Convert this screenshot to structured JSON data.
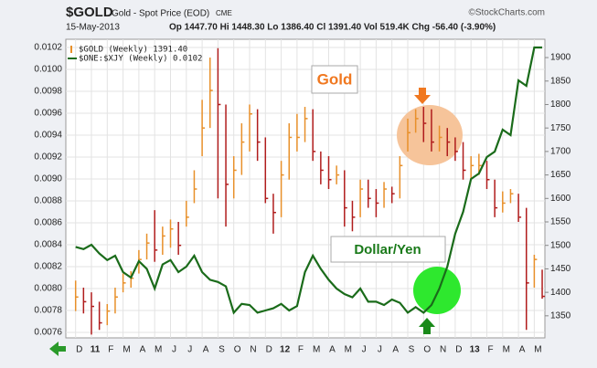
{
  "chart_data": {
    "type": "combo",
    "symbol": "$GOLD",
    "title": "Gold - Spot Price (EOD)",
    "exchange": "CME",
    "source": "©StockCharts.com",
    "date": "15-May-2013",
    "quote": "Op 1447.70  Hi 1448.30  Lo 1386.40  Cl 1391.40  Vol 519.4K  Chg -56.40 (-3.90%)",
    "annotations": [
      "Gold",
      "Dollar/Yen"
    ],
    "categories": [
      "D",
      null,
      "11",
      null,
      "F",
      null,
      "M",
      null,
      "A",
      null,
      "M",
      null,
      "J",
      null,
      "J",
      null,
      "A",
      null,
      "S",
      null,
      "O",
      null,
      "N",
      null,
      "D",
      null,
      "12",
      null,
      "F",
      null,
      "M",
      null,
      "A",
      null,
      "M",
      null,
      "J",
      null,
      "J",
      null,
      "A",
      null,
      "S",
      null,
      "O",
      null,
      "N",
      null,
      "D",
      null,
      "13",
      null,
      "F",
      null,
      "M",
      null,
      "A",
      null,
      "M",
      null
    ],
    "ylim": [
      0.00755,
      0.010275
    ],
    "yticks": [
      0.0076,
      0.0078,
      {
        "value": 0.008,
        "label": "0.0080"
      },
      0.0082,
      0.0084,
      0.0086,
      0.0088,
      {
        "value": 0.009,
        "label": "0.0090"
      },
      0.0092,
      0.0094,
      0.0096,
      0.0098,
      {
        "value": 0.01,
        "label": "0.0100"
      },
      0.0102
    ],
    "y2lim": [
      1303,
      1939
    ],
    "y2ticks": [
      1350,
      1400,
      1450,
      1500,
      1550,
      1600,
      1650,
      1700,
      1750,
      1800,
      1850,
      1900
    ],
    "grid": true,
    "series": [
      {
        "name": "$GOLD (Weekly) 1391.40",
        "type": "hlc",
        "axis": "y2",
        "up_color": "#e8902a",
        "down_color": "#b01c1c",
        "high": [
          1425,
          1410,
          1400,
          1380,
          1375,
          1410,
          1440,
          1445,
          1490,
          1525,
          1575,
          1540,
          1555,
          1550,
          1595,
          1660,
          1810,
          1900,
          1920,
          1800,
          1690,
          1760,
          1800,
          1790,
          1730,
          1610,
          1680,
          1760,
          1780,
          1795,
          1790,
          1700,
          1690,
          1670,
          1660,
          1595,
          1640,
          1640,
          1620,
          1635,
          1625,
          1690,
          1770,
          1790,
          1795,
          1790,
          1755,
          1750,
          1730,
          1720,
          1690,
          1695,
          1680,
          1640,
          1615,
          1620,
          1610,
          1580,
          1480,
          1448.3
        ],
        "low": [
          1360,
          1355,
          1310,
          1320,
          1330,
          1355,
          1400,
          1410,
          1440,
          1470,
          1465,
          1480,
          1495,
          1480,
          1540,
          1590,
          1690,
          1750,
          1600,
          1540,
          1600,
          1650,
          1700,
          1680,
          1590,
          1525,
          1560,
          1640,
          1700,
          1720,
          1680,
          1630,
          1620,
          1630,
          1540,
          1530,
          1560,
          1580,
          1560,
          1580,
          1590,
          1600,
          1700,
          1740,
          1720,
          1700,
          1700,
          1690,
          1680,
          1640,
          1640,
          1650,
          1620,
          1560,
          1570,
          1590,
          1550,
          1320,
          1410,
          1386.4
        ],
        "close": [
          1390,
          1380,
          1370,
          1335,
          1360,
          1390,
          1420,
          1430,
          1470,
          1505,
          1490,
          1520,
          1535,
          1500,
          1560,
          1620,
          1750,
          1830,
          1800,
          1630,
          1660,
          1720,
          1780,
          1720,
          1600,
          1570,
          1650,
          1730,
          1730,
          1770,
          1700,
          1660,
          1640,
          1650,
          1580,
          1560,
          1620,
          1600,
          1590,
          1620,
          1610,
          1670,
          1740,
          1770,
          1760,
          1720,
          1730,
          1720,
          1700,
          1660,
          1670,
          1670,
          1640,
          1580,
          1590,
          1610,
          1560,
          1420,
          1470,
          1391.4
        ]
      },
      {
        "name": "$ONE:$XJY (Weekly) 0.0102",
        "type": "line",
        "color": "#1a6b1a",
        "values": [
          0.00838,
          0.00836,
          0.0084,
          0.00832,
          0.00826,
          0.0083,
          0.00815,
          0.0081,
          0.00825,
          0.00818,
          0.008,
          0.00822,
          0.00826,
          0.00815,
          0.0082,
          0.0083,
          0.00815,
          0.00808,
          0.00806,
          0.00802,
          0.00778,
          0.00786,
          0.00785,
          0.00778,
          0.0078,
          0.00782,
          0.00786,
          0.0078,
          0.00784,
          0.00815,
          0.0083,
          0.00818,
          0.00808,
          0.008,
          0.00795,
          0.00792,
          0.008,
          0.00788,
          0.00788,
          0.00785,
          0.0079,
          0.00787,
          0.00778,
          0.00783,
          0.00778,
          0.00785,
          0.008,
          0.0082,
          0.0085,
          0.0087,
          0.009,
          0.00905,
          0.0092,
          0.00925,
          0.00945,
          0.0094,
          0.0099,
          0.00985,
          0.0102,
          0.0102
        ]
      }
    ]
  }
}
